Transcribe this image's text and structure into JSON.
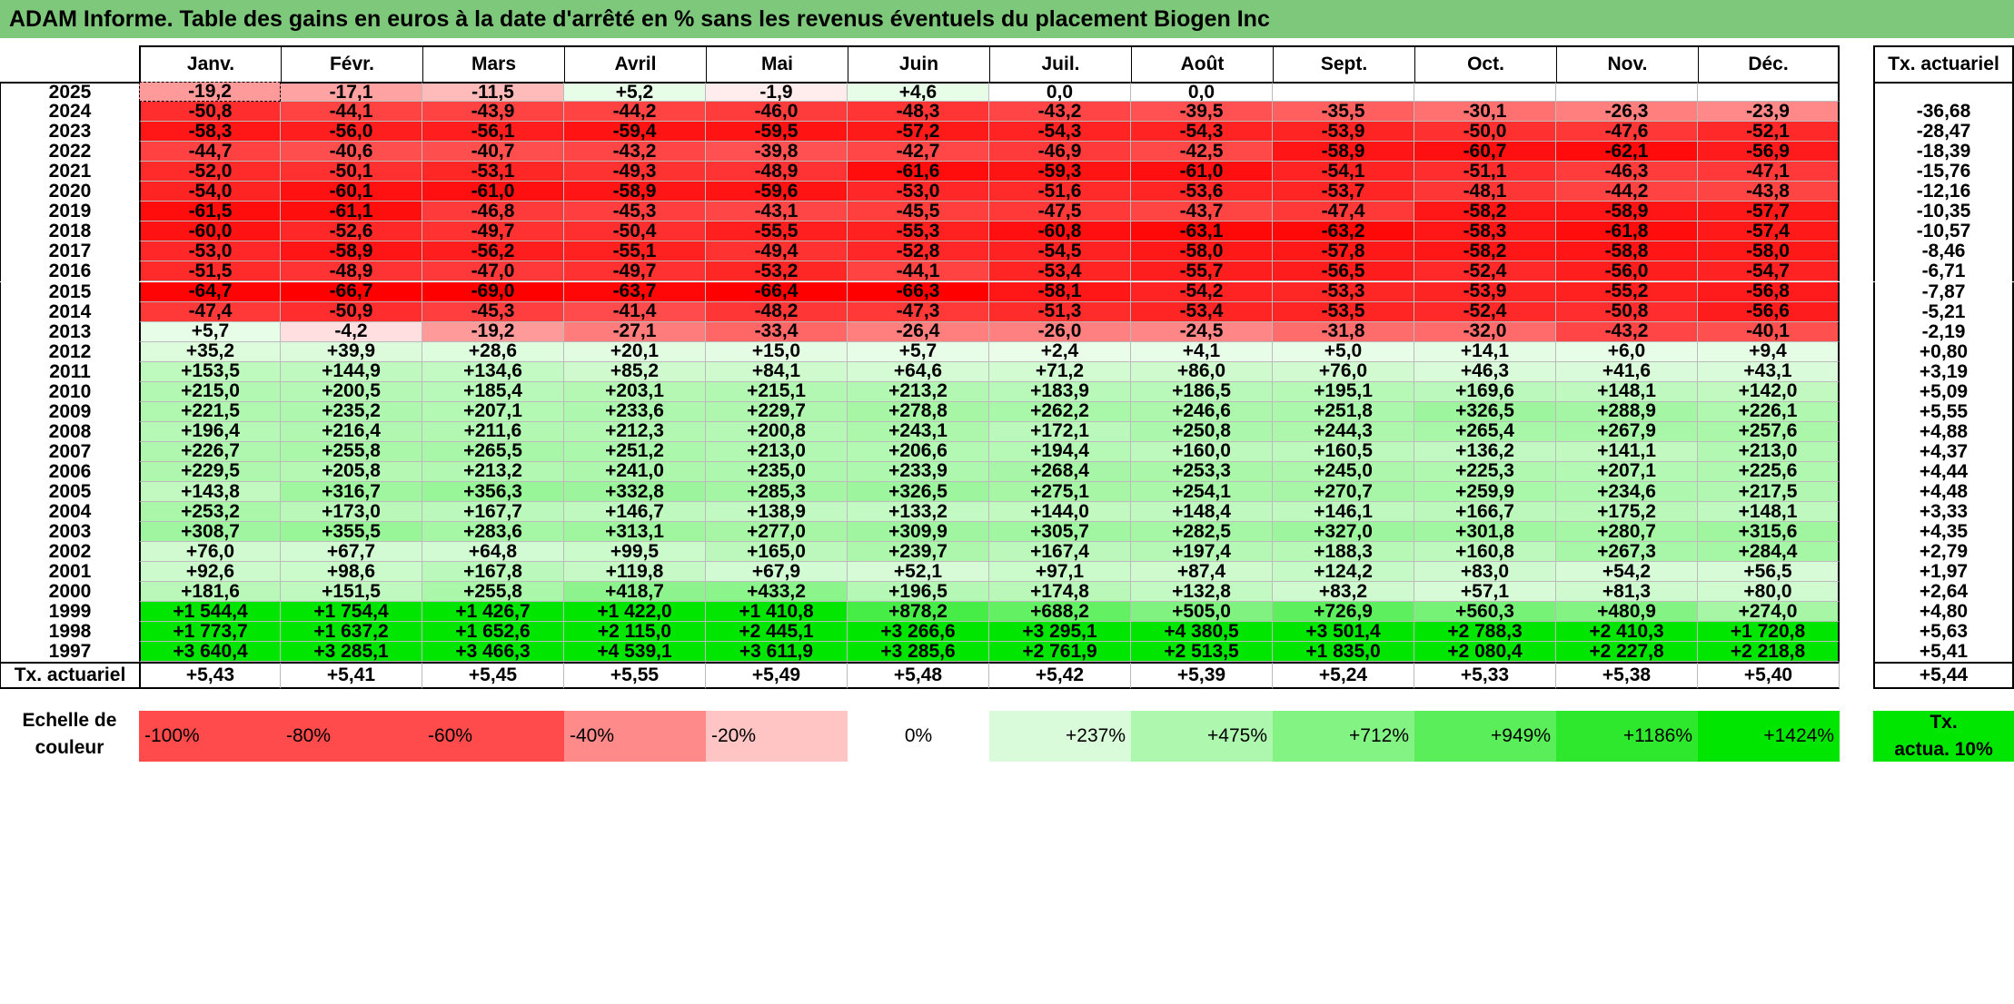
{
  "title": "ADAM Informe. Table des gains en euros à la date d'arrêté en % sans les revenus éventuels du placement Biogen Inc",
  "months": [
    "Janv.",
    "Févr.",
    "Mars",
    "Avril",
    "Mai",
    "Juin",
    "Juil.",
    "Août",
    "Sept.",
    "Oct.",
    "Nov.",
    "Déc."
  ],
  "rows": [
    {
      "year": "2025",
      "values": [
        "-19,2",
        "-17,1",
        "-11,5",
        "+5,2",
        "-1,9",
        "+4,6",
        "0,0",
        "0,0",
        "",
        "",
        "",
        ""
      ],
      "actuarial": ""
    },
    {
      "year": "2024",
      "values": [
        "-50,8",
        "-44,1",
        "-43,9",
        "-44,2",
        "-46,0",
        "-48,3",
        "-43,2",
        "-39,5",
        "-35,5",
        "-30,1",
        "-26,3",
        "-23,9"
      ],
      "actuarial": "-36,68"
    },
    {
      "year": "2023",
      "values": [
        "-58,3",
        "-56,0",
        "-56,1",
        "-59,4",
        "-59,5",
        "-57,2",
        "-54,3",
        "-54,3",
        "-53,9",
        "-50,0",
        "-47,6",
        "-52,1"
      ],
      "actuarial": "-28,47"
    },
    {
      "year": "2022",
      "values": [
        "-44,7",
        "-40,6",
        "-40,7",
        "-43,2",
        "-39,8",
        "-42,7",
        "-46,9",
        "-42,5",
        "-58,9",
        "-60,7",
        "-62,1",
        "-56,9"
      ],
      "actuarial": "-18,39"
    },
    {
      "year": "2021",
      "values": [
        "-52,0",
        "-50,1",
        "-53,1",
        "-49,3",
        "-48,9",
        "-61,6",
        "-59,3",
        "-61,0",
        "-54,1",
        "-51,1",
        "-46,3",
        "-47,1"
      ],
      "actuarial": "-15,76"
    },
    {
      "year": "2020",
      "values": [
        "-54,0",
        "-60,1",
        "-61,0",
        "-58,9",
        "-59,6",
        "-53,0",
        "-51,6",
        "-53,6",
        "-53,7",
        "-48,1",
        "-44,2",
        "-43,8"
      ],
      "actuarial": "-12,16"
    },
    {
      "year": "2019",
      "values": [
        "-61,5",
        "-61,1",
        "-46,8",
        "-45,3",
        "-43,1",
        "-45,5",
        "-47,5",
        "-43,7",
        "-47,4",
        "-58,2",
        "-58,9",
        "-57,7"
      ],
      "actuarial": "-10,35"
    },
    {
      "year": "2018",
      "values": [
        "-60,0",
        "-52,6",
        "-49,7",
        "-50,4",
        "-55,5",
        "-55,3",
        "-60,8",
        "-63,1",
        "-63,2",
        "-58,3",
        "-61,8",
        "-57,4"
      ],
      "actuarial": "-10,57"
    },
    {
      "year": "2017",
      "values": [
        "-53,0",
        "-58,9",
        "-56,2",
        "-55,1",
        "-49,4",
        "-52,8",
        "-54,5",
        "-58,0",
        "-57,8",
        "-58,2",
        "-58,8",
        "-58,0"
      ],
      "actuarial": "-8,46"
    },
    {
      "year": "2016",
      "values": [
        "-51,5",
        "-48,9",
        "-47,0",
        "-49,7",
        "-53,2",
        "-44,1",
        "-53,4",
        "-55,7",
        "-56,5",
        "-52,4",
        "-56,0",
        "-54,7"
      ],
      "actuarial": "-6,71"
    },
    {
      "year": "2015",
      "values": [
        "-64,7",
        "-66,7",
        "-69,0",
        "-63,7",
        "-66,4",
        "-66,3",
        "-58,1",
        "-54,2",
        "-53,3",
        "-53,9",
        "-55,2",
        "-56,8"
      ],
      "actuarial": "-7,87"
    },
    {
      "year": "2014",
      "values": [
        "-47,4",
        "-50,9",
        "-45,3",
        "-41,4",
        "-48,2",
        "-47,3",
        "-51,3",
        "-53,4",
        "-53,5",
        "-52,4",
        "-50,8",
        "-56,6"
      ],
      "actuarial": "-5,21"
    },
    {
      "year": "2013",
      "values": [
        "+5,7",
        "-4,2",
        "-19,2",
        "-27,1",
        "-33,4",
        "-26,4",
        "-26,0",
        "-24,5",
        "-31,8",
        "-32,0",
        "-43,2",
        "-40,1"
      ],
      "actuarial": "-2,19"
    },
    {
      "year": "2012",
      "values": [
        "+35,2",
        "+39,9",
        "+28,6",
        "+20,1",
        "+15,0",
        "+5,7",
        "+2,4",
        "+4,1",
        "+5,0",
        "+14,1",
        "+6,0",
        "+9,4"
      ],
      "actuarial": "+0,80"
    },
    {
      "year": "2011",
      "values": [
        "+153,5",
        "+144,9",
        "+134,6",
        "+85,2",
        "+84,1",
        "+64,6",
        "+71,2",
        "+86,0",
        "+76,0",
        "+46,3",
        "+41,6",
        "+43,1"
      ],
      "actuarial": "+3,19"
    },
    {
      "year": "2010",
      "values": [
        "+215,0",
        "+200,5",
        "+185,4",
        "+203,1",
        "+215,1",
        "+213,2",
        "+183,9",
        "+186,5",
        "+195,1",
        "+169,6",
        "+148,1",
        "+142,0"
      ],
      "actuarial": "+5,09"
    },
    {
      "year": "2009",
      "values": [
        "+221,5",
        "+235,2",
        "+207,1",
        "+233,6",
        "+229,7",
        "+278,8",
        "+262,2",
        "+246,6",
        "+251,8",
        "+326,5",
        "+288,9",
        "+226,1"
      ],
      "actuarial": "+5,55"
    },
    {
      "year": "2008",
      "values": [
        "+196,4",
        "+216,4",
        "+211,6",
        "+212,3",
        "+200,8",
        "+243,1",
        "+172,1",
        "+250,8",
        "+244,3",
        "+265,4",
        "+267,9",
        "+257,6"
      ],
      "actuarial": "+4,88"
    },
    {
      "year": "2007",
      "values": [
        "+226,7",
        "+255,8",
        "+265,5",
        "+251,2",
        "+213,0",
        "+206,6",
        "+194,4",
        "+160,0",
        "+160,5",
        "+136,2",
        "+141,1",
        "+213,0"
      ],
      "actuarial": "+4,37"
    },
    {
      "year": "2006",
      "values": [
        "+229,5",
        "+205,8",
        "+213,2",
        "+241,0",
        "+235,0",
        "+233,9",
        "+268,4",
        "+253,3",
        "+245,0",
        "+225,3",
        "+207,1",
        "+225,6"
      ],
      "actuarial": "+4,44"
    },
    {
      "year": "2005",
      "values": [
        "+143,8",
        "+316,7",
        "+356,3",
        "+332,8",
        "+285,3",
        "+326,5",
        "+275,1",
        "+254,1",
        "+270,7",
        "+259,9",
        "+234,6",
        "+217,5"
      ],
      "actuarial": "+4,48"
    },
    {
      "year": "2004",
      "values": [
        "+253,2",
        "+173,0",
        "+167,7",
        "+146,7",
        "+138,9",
        "+133,2",
        "+144,0",
        "+148,4",
        "+146,1",
        "+166,7",
        "+175,2",
        "+148,1"
      ],
      "actuarial": "+3,33"
    },
    {
      "year": "2003",
      "values": [
        "+308,7",
        "+355,5",
        "+283,6",
        "+313,1",
        "+277,0",
        "+309,9",
        "+305,7",
        "+282,5",
        "+327,0",
        "+301,8",
        "+280,7",
        "+315,6"
      ],
      "actuarial": "+4,35"
    },
    {
      "year": "2002",
      "values": [
        "+76,0",
        "+67,7",
        "+64,8",
        "+99,5",
        "+165,0",
        "+239,7",
        "+167,4",
        "+197,4",
        "+188,3",
        "+160,8",
        "+267,3",
        "+284,4"
      ],
      "actuarial": "+2,79"
    },
    {
      "year": "2001",
      "values": [
        "+92,6",
        "+98,6",
        "+167,8",
        "+119,8",
        "+67,9",
        "+52,1",
        "+97,1",
        "+87,4",
        "+124,2",
        "+83,0",
        "+54,2",
        "+56,5"
      ],
      "actuarial": "+1,97"
    },
    {
      "year": "2000",
      "values": [
        "+181,6",
        "+151,5",
        "+255,8",
        "+418,7",
        "+433,2",
        "+196,5",
        "+174,8",
        "+132,8",
        "+83,2",
        "+57,1",
        "+81,3",
        "+80,0"
      ],
      "actuarial": "+2,64"
    },
    {
      "year": "1999",
      "values": [
        "+1 544,4",
        "+1 754,4",
        "+1 426,7",
        "+1 422,0",
        "+1 410,8",
        "+878,2",
        "+688,2",
        "+505,0",
        "+726,9",
        "+560,3",
        "+480,9",
        "+274,0"
      ],
      "actuarial": "+4,80"
    },
    {
      "year": "1998",
      "values": [
        "+1 773,7",
        "+1 637,2",
        "+1 652,6",
        "+2 115,0",
        "+2 445,1",
        "+3 266,6",
        "+3 295,1",
        "+4 380,5",
        "+3 501,4",
        "+2 788,3",
        "+2 410,3",
        "+1 720,8"
      ],
      "actuarial": "+5,63"
    },
    {
      "year": "1997",
      "values": [
        "+3 640,4",
        "+3 285,1",
        "+3 466,3",
        "+4 539,1",
        "+3 611,9",
        "+3 285,6",
        "+2 761,9",
        "+2 513,5",
        "+1 835,0",
        "+2 080,4",
        "+2 227,8",
        "+2 218,8"
      ],
      "actuarial": "+5,41"
    }
  ],
  "totals": {
    "label": "Tx. actuariel",
    "values": [
      "+5,43",
      "+5,41",
      "+5,45",
      "+5,55",
      "+5,49",
      "+5,48",
      "+5,42",
      "+5,39",
      "+5,24",
      "+5,33",
      "+5,38",
      "+5,40"
    ],
    "actuarial": "+5,44"
  },
  "side_header": "Tx. actuariel",
  "scale": {
    "label_line1": "Echelle de",
    "label_line2": "couleur",
    "items": [
      {
        "label": "-100%",
        "color": "#ff4b4b"
      },
      {
        "label": "-80%",
        "color": "#ff4b4b"
      },
      {
        "label": "-60%",
        "color": "#ff4b4b"
      },
      {
        "label": "-40%",
        "color": "#ff8a8a"
      },
      {
        "label": "-20%",
        "color": "#ffc5c5"
      },
      {
        "label": "0%",
        "color": "#ffffff"
      },
      {
        "label": "+237%",
        "color": "#d9fbd9"
      },
      {
        "label": "+475%",
        "color": "#aef7ae"
      },
      {
        "label": "+712%",
        "color": "#83f383"
      },
      {
        "label": "+949%",
        "color": "#5aef5a"
      },
      {
        "label": "+1186%",
        "color": "#2ee82e"
      },
      {
        "label": "+1424%",
        "color": "#00e600"
      }
    ],
    "side_line1": "Tx.",
    "side_line2": "actua. 10%",
    "side_color": "#00e600"
  },
  "colors": {
    "title_bg": "#7ec87b",
    "negative": "#ff0000",
    "positive": "#00e600"
  }
}
